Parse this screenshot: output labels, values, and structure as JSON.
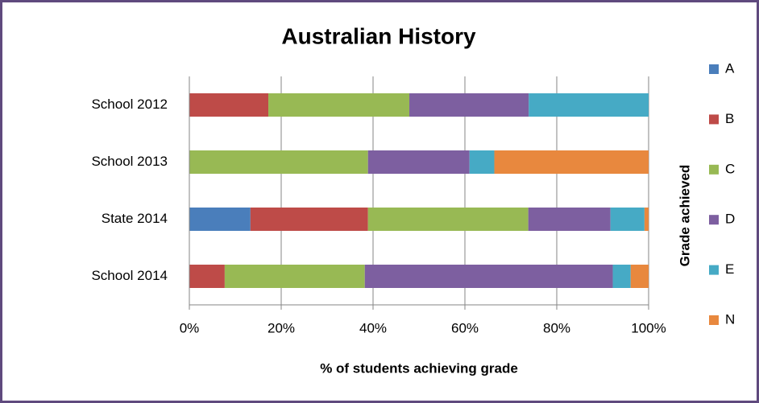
{
  "chart_data": {
    "type": "stacked_barh",
    "title": "Australian History",
    "x_label": "% of students achieving grade",
    "legend_title": "Grade achieved",
    "legend": "right",
    "grid": true,
    "categories": [
      "School 2012",
      "School 2013",
      "State 2014",
      "School 2014"
    ],
    "series": [
      {
        "name": "A",
        "color": "#4a7ebb",
        "values": [
          0,
          0,
          13.3,
          0
        ]
      },
      {
        "name": "B",
        "color": "#be4b48",
        "values": [
          17.2,
          0,
          25.6,
          7.7
        ]
      },
      {
        "name": "C",
        "color": "#98b954",
        "values": [
          30.7,
          38.9,
          34.9,
          30.5
        ]
      },
      {
        "name": "D",
        "color": "#7d5fa0",
        "values": [
          26.0,
          22.1,
          17.9,
          54.0
        ]
      },
      {
        "name": "E",
        "color": "#46aac5",
        "values": [
          26.1,
          5.4,
          7.4,
          3.9
        ]
      },
      {
        "name": "N",
        "color": "#e8883e",
        "values": [
          0,
          33.6,
          0.9,
          3.9
        ]
      }
    ],
    "xlim": [
      0,
      100
    ],
    "xticks": [
      {
        "value": 0,
        "label": "0%"
      },
      {
        "value": 20,
        "label": "20%"
      },
      {
        "value": 40,
        "label": "40%"
      },
      {
        "value": 60,
        "label": "60%"
      },
      {
        "value": 80,
        "label": "80%"
      },
      {
        "value": 100,
        "label": "100%"
      }
    ]
  }
}
